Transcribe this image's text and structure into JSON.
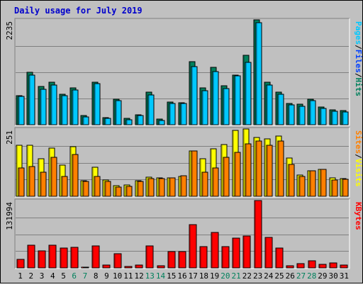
{
  "chart_data": {
    "type": "bar",
    "title": "Daily usage for July 2019",
    "categories": [
      "1",
      "2",
      "3",
      "4",
      "5",
      "6",
      "7",
      "8",
      "9",
      "10",
      "11",
      "12",
      "13",
      "14",
      "15",
      "16",
      "17",
      "18",
      "19",
      "20",
      "21",
      "22",
      "23",
      "24",
      "25",
      "26",
      "27",
      "28",
      "29",
      "30",
      "31"
    ],
    "weekend_days": [
      "6",
      "7",
      "13",
      "14",
      "20",
      "21",
      "27",
      "28"
    ],
    "panels": [
      {
        "name": "top",
        "max_label": "2235",
        "ylim": [
          0,
          2235
        ],
        "axis_labels": [
          "Pages",
          "Files",
          "Hits"
        ],
        "series": [
          {
            "name": "Hits",
            "color": "#00805c",
            "values": [
              620,
              1110,
              810,
              900,
              650,
              780,
              190,
              910,
              150,
              550,
              130,
              210,
              690,
              120,
              480,
              470,
              1350,
              780,
              1220,
              830,
              1060,
              1480,
              2235,
              900,
              690,
              460,
              440,
              550,
              370,
              310,
              300
            ]
          },
          {
            "name": "Files",
            "color": "#0040ff",
            "values": [
              0,
              0,
              0,
              0,
              0,
              0,
              0,
              0,
              0,
              0,
              0,
              0,
              0,
              0,
              0,
              0,
              0,
              0,
              0,
              0,
              0,
              0,
              0,
              0,
              0,
              0,
              0,
              0,
              0,
              0,
              0
            ]
          },
          {
            "name": "Pages",
            "color": "#00c8ff",
            "values": [
              600,
              1050,
              760,
              850,
              620,
              740,
              170,
              880,
              130,
              520,
              110,
              190,
              640,
              90,
              460,
              450,
              1240,
              720,
              1130,
              770,
              1040,
              1330,
              2180,
              840,
              650,
              420,
              400,
              510,
              340,
              290,
              270
            ]
          }
        ]
      },
      {
        "name": "middle",
        "max_label": "251",
        "ylim": [
          0,
          251
        ],
        "axis_labels": [
          "Sites",
          "Visits"
        ],
        "series": [
          {
            "name": "Visits",
            "color": "#ffff00",
            "values": [
              190,
              190,
              140,
              180,
              115,
              185,
              58,
              108,
              60,
              40,
              42,
              58,
              72,
              68,
              70,
              75,
              168,
              140,
              178,
              192,
              245,
              251,
              218,
              215,
              225,
              142,
              78,
              95,
              100,
              68,
              65
            ]
          },
          {
            "name": "Sites",
            "color": "#ff8000",
            "values": [
              105,
              110,
              90,
              145,
              75,
              155,
              55,
              75,
              55,
              35,
              38,
              55,
              65,
              66,
              70,
              77,
              170,
              90,
              105,
              145,
              165,
              195,
              205,
              190,
              205,
              120,
              75,
              95,
              100,
              60,
              63
            ]
          }
        ]
      },
      {
        "name": "bottom",
        "max_label": "131994",
        "ylim": [
          0,
          131994
        ],
        "axis_labels": [
          "KBytes"
        ],
        "series": [
          {
            "name": "KBytes",
            "color": "#ff0000",
            "values": [
              16000,
              45000,
              33000,
              44000,
              39000,
              40000,
              2000,
              43000,
              6000,
              28000,
              3000,
              5000,
              43000,
              3500,
              32000,
              32000,
              85000,
              42000,
              70000,
              42000,
              58000,
              63000,
              131994,
              60000,
              39000,
              4500,
              8500,
              14000,
              6500,
              10000,
              5000
            ]
          }
        ]
      }
    ]
  }
}
